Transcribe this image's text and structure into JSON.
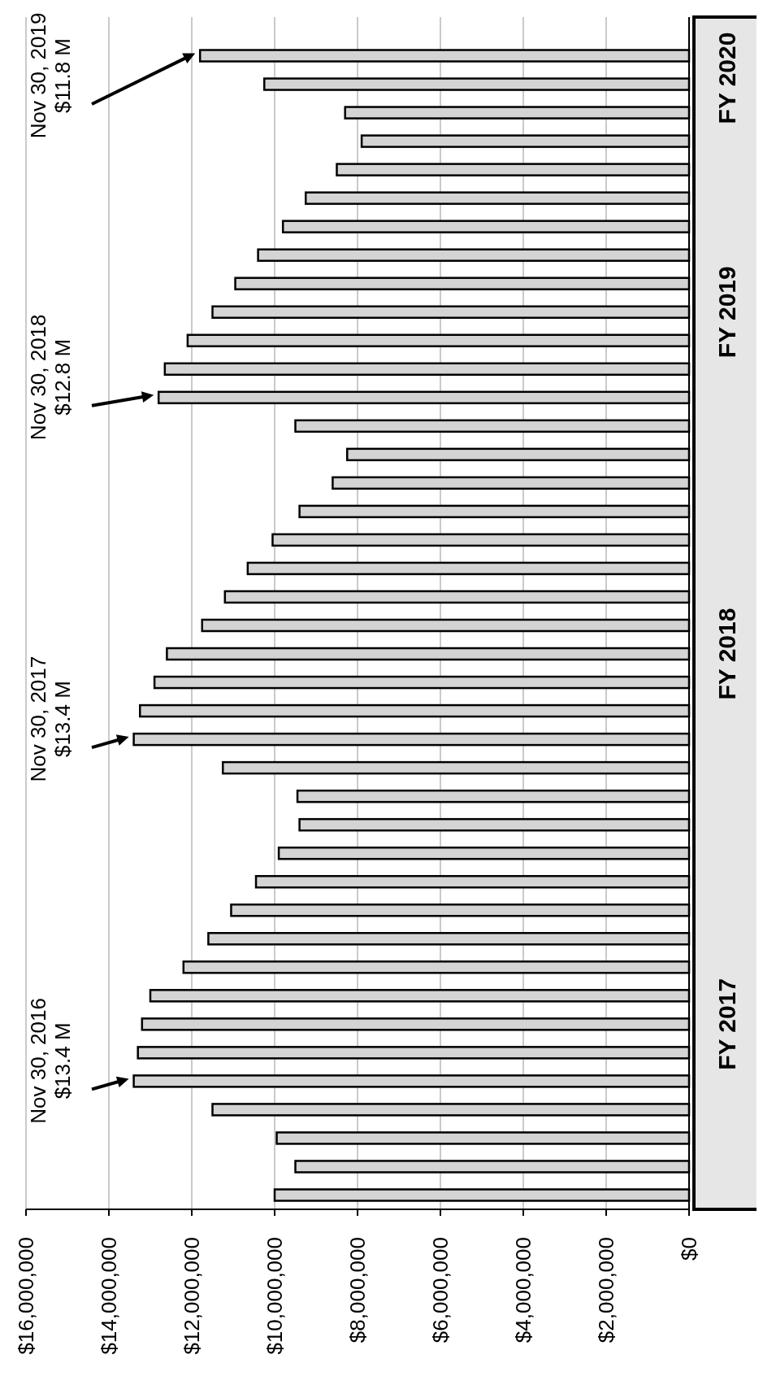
{
  "chart_data": {
    "type": "bar",
    "orientation": "horizontal",
    "categories": [
      "FY 2020",
      null,
      null,
      null,
      null,
      null,
      null,
      null,
      null,
      "FY 2019",
      null,
      null,
      null,
      null,
      null,
      null,
      null,
      null,
      null,
      null,
      null,
      "FY 2018",
      null,
      null,
      null,
      null,
      null,
      null,
      null,
      null,
      null,
      null,
      null,
      null,
      "FY 2017",
      null,
      null,
      null,
      null,
      null,
      null
    ],
    "values": [
      11800000,
      10250000,
      8300000,
      7900000,
      8500000,
      9250000,
      9800000,
      10400000,
      10950000,
      11500000,
      12100000,
      12650000,
      12800000,
      9500000,
      8250000,
      8600000,
      9400000,
      10050000,
      10650000,
      11200000,
      11750000,
      12600000,
      12900000,
      13250000,
      13400000,
      11250000,
      9450000,
      9400000,
      9900000,
      10450000,
      11050000,
      11600000,
      12200000,
      13000000,
      13200000,
      13300000,
      13400000,
      11500000,
      9950000,
      9500000,
      10000000
    ],
    "color": "#d4d4d4",
    "xlim": [
      16000000,
      0
    ],
    "xticks": [
      {
        "value": 16000000,
        "label": "$16,000,000"
      },
      {
        "value": 14000000,
        "label": "$14,000,000"
      },
      {
        "value": 12000000,
        "label": "$12,000,000"
      },
      {
        "value": 10000000,
        "label": "$10,000,000"
      },
      {
        "value": 8000000,
        "label": "$8,000,000"
      },
      {
        "value": 6000000,
        "label": "$6,000,000"
      },
      {
        "value": 4000000,
        "label": "$4,000,000"
      },
      {
        "value": 2000000,
        "label": "$2,000,000"
      },
      {
        "value": 0,
        "label": "$0"
      }
    ],
    "grid": "x",
    "annotations": [
      "Nov 30, 2019\n$11.8 M",
      "Nov 30, 2018\n$12.8 M",
      "Nov 30, 2017\n$13.4 M",
      "Nov 30, 2016\n$13.4 M"
    ]
  }
}
